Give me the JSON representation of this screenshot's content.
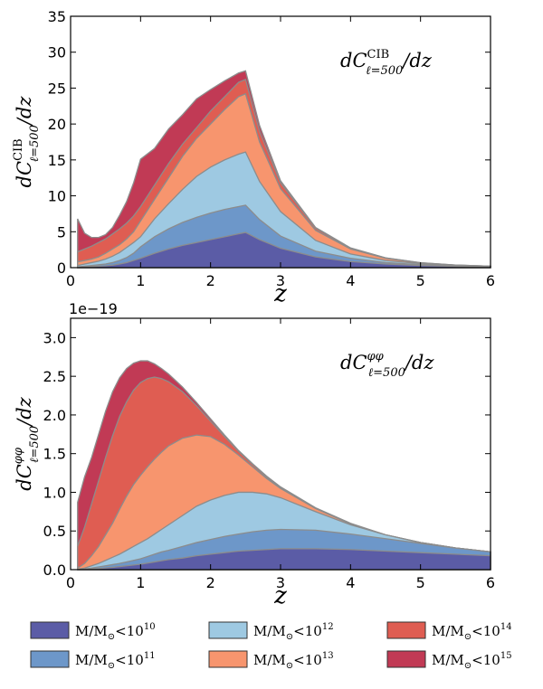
{
  "colors": {
    "m10": "#5b5ca6",
    "m11": "#6d97c9",
    "m12": "#9ec9e2",
    "m13": "#f7956e",
    "m14": "#df5d52",
    "m15": "#c13a55",
    "edge": "#8c8c8c"
  },
  "legend": [
    {
      "key": "m10",
      "prefix": "M/M",
      "sub": "⊙",
      "rel": "<10",
      "exp": "10"
    },
    {
      "key": "m12",
      "prefix": "M/M",
      "sub": "⊙",
      "rel": "<10",
      "exp": "12"
    },
    {
      "key": "m14",
      "prefix": "M/M",
      "sub": "⊙",
      "rel": "<10",
      "exp": "14"
    },
    {
      "key": "m11",
      "prefix": "M/M",
      "sub": "⊙",
      "rel": "<10",
      "exp": "11"
    },
    {
      "key": "m13",
      "prefix": "M/M",
      "sub": "⊙",
      "rel": "<10",
      "exp": "13"
    },
    {
      "key": "m15",
      "prefix": "M/M",
      "sub": "⊙",
      "rel": "<10",
      "exp": "15"
    }
  ],
  "chart_data": [
    {
      "type": "area",
      "stacked": "cumulative",
      "xlabel": "z",
      "ylabel": {
        "base": "dC",
        "sup": "CIB",
        "sub": "ℓ=500",
        "tail": "/dz"
      },
      "annotation": {
        "base": "dC",
        "sup": "CIB",
        "sub": "ℓ=500",
        "tail": "/dz"
      },
      "xlim": [
        0,
        6
      ],
      "ylim": [
        0,
        35
      ],
      "xticks": [
        "0",
        "1",
        "2",
        "3",
        "4",
        "5",
        "6"
      ],
      "yticks": [
        "0",
        "5",
        "10",
        "15",
        "20",
        "25",
        "30",
        "35"
      ],
      "offset_text": "",
      "x": [
        0.1,
        0.2,
        0.3,
        0.4,
        0.5,
        0.6,
        0.7,
        0.8,
        0.9,
        1.0,
        1.2,
        1.4,
        1.6,
        1.8,
        2.0,
        2.2,
        2.4,
        2.5,
        2.7,
        3.0,
        3.5,
        4.0,
        4.5,
        5.0,
        5.5,
        6.0
      ],
      "series": [
        {
          "name": "m10",
          "values": [
            0.05,
            0.1,
            0.15,
            0.2,
            0.25,
            0.35,
            0.5,
            0.7,
            1.0,
            1.3,
            2.0,
            2.6,
            3.1,
            3.5,
            3.9,
            4.3,
            4.7,
            4.9,
            3.9,
            2.7,
            1.5,
            0.85,
            0.5,
            0.3,
            0.18,
            0.1
          ]
        },
        {
          "name": "m11",
          "values": [
            0.1,
            0.2,
            0.3,
            0.4,
            0.5,
            0.7,
            1.0,
            1.4,
            2.0,
            2.9,
            4.3,
            5.4,
            6.3,
            7.0,
            7.6,
            8.1,
            8.5,
            8.7,
            6.7,
            4.4,
            2.3,
            1.3,
            0.7,
            0.4,
            0.25,
            0.15
          ]
        },
        {
          "name": "m12",
          "values": [
            0.3,
            0.5,
            0.7,
            0.9,
            1.2,
            1.6,
            2.1,
            2.8,
            3.5,
            4.3,
            6.8,
            8.9,
            10.9,
            12.7,
            14.0,
            15.0,
            15.8,
            16.1,
            12.0,
            7.8,
            3.8,
            1.9,
            1.0,
            0.55,
            0.3,
            0.18
          ]
        },
        {
          "name": "m13",
          "values": [
            0.8,
            1.0,
            1.2,
            1.5,
            2.0,
            2.6,
            3.2,
            4.0,
            5.0,
            6.5,
            9.5,
            12.5,
            15.5,
            18.0,
            20.0,
            22.0,
            23.8,
            24.2,
            17.5,
            11.0,
            5.2,
            2.6,
            1.3,
            0.65,
            0.35,
            0.2
          ]
        },
        {
          "name": "m14",
          "values": [
            2.2,
            2.6,
            3.0,
            3.5,
            4.0,
            4.7,
            5.4,
            6.2,
            7.2,
            8.5,
            11.5,
            14.5,
            17.2,
            19.5,
            21.8,
            23.8,
            25.8,
            26.2,
            19.0,
            11.8,
            5.5,
            2.7,
            1.35,
            0.68,
            0.36,
            0.2
          ]
        },
        {
          "name": "m15",
          "values": [
            6.8,
            4.8,
            4.2,
            4.2,
            4.6,
            5.6,
            7.3,
            9.2,
            11.8,
            15.1,
            16.6,
            19.3,
            21.3,
            23.5,
            24.8,
            26.0,
            27.1,
            27.4,
            19.8,
            12.1,
            5.6,
            2.75,
            1.37,
            0.69,
            0.36,
            0.2
          ]
        }
      ]
    },
    {
      "type": "area",
      "stacked": "cumulative",
      "xlabel": "z",
      "ylabel": {
        "base": "dC",
        "sup": "φφ",
        "sub": "ℓ=500",
        "tail": "/dz"
      },
      "annotation": {
        "base": "dC",
        "sup": "φφ",
        "sub": "ℓ=500",
        "tail": "/dz"
      },
      "xlim": [
        0,
        6
      ],
      "ylim": [
        0,
        3.25
      ],
      "xticks": [
        "0",
        "1",
        "2",
        "3",
        "4",
        "5",
        "6"
      ],
      "yticks": [
        "0.0",
        "0.5",
        "1.0",
        "1.5",
        "2.0",
        "2.5",
        "3.0"
      ],
      "offset_text": "1e−19",
      "x": [
        0.1,
        0.2,
        0.3,
        0.4,
        0.5,
        0.6,
        0.7,
        0.8,
        0.9,
        1.0,
        1.1,
        1.2,
        1.3,
        1.4,
        1.6,
        1.8,
        2.0,
        2.2,
        2.4,
        2.6,
        2.8,
        3.0,
        3.5,
        4.0,
        4.5,
        5.0,
        5.5,
        6.0
      ],
      "series": [
        {
          "name": "m10",
          "values": [
            0.0,
            0.003,
            0.008,
            0.015,
            0.022,
            0.03,
            0.04,
            0.05,
            0.06,
            0.07,
            0.085,
            0.1,
            0.115,
            0.13,
            0.15,
            0.18,
            0.2,
            0.22,
            0.24,
            0.25,
            0.26,
            0.27,
            0.27,
            0.26,
            0.24,
            0.22,
            0.2,
            0.18
          ]
        },
        {
          "name": "m11",
          "values": [
            0.0,
            0.008,
            0.02,
            0.035,
            0.05,
            0.065,
            0.08,
            0.1,
            0.12,
            0.14,
            0.17,
            0.2,
            0.23,
            0.25,
            0.3,
            0.35,
            0.39,
            0.43,
            0.46,
            0.49,
            0.51,
            0.52,
            0.51,
            0.46,
            0.4,
            0.34,
            0.28,
            0.23
          ]
        },
        {
          "name": "m12",
          "values": [
            0.005,
            0.02,
            0.05,
            0.08,
            0.12,
            0.16,
            0.2,
            0.25,
            0.3,
            0.35,
            0.4,
            0.46,
            0.52,
            0.58,
            0.7,
            0.82,
            0.9,
            0.96,
            1.0,
            1.0,
            0.98,
            0.93,
            0.75,
            0.58,
            0.45,
            0.35,
            0.28,
            0.23
          ]
        },
        {
          "name": "m13",
          "values": [
            0.02,
            0.08,
            0.18,
            0.3,
            0.45,
            0.6,
            0.78,
            0.95,
            1.1,
            1.22,
            1.33,
            1.43,
            1.52,
            1.6,
            1.7,
            1.74,
            1.72,
            1.62,
            1.48,
            1.33,
            1.18,
            1.05,
            0.79,
            0.59,
            0.45,
            0.35,
            0.28,
            0.23
          ]
        },
        {
          "name": "m14",
          "values": [
            0.3,
            0.55,
            0.85,
            1.15,
            1.45,
            1.73,
            1.98,
            2.17,
            2.32,
            2.42,
            2.47,
            2.49,
            2.47,
            2.43,
            2.3,
            2.12,
            1.92,
            1.72,
            1.53,
            1.36,
            1.2,
            1.06,
            0.79,
            0.59,
            0.45,
            0.35,
            0.28,
            0.23
          ]
        },
        {
          "name": "m15",
          "values": [
            0.87,
            1.2,
            1.45,
            1.75,
            2.05,
            2.3,
            2.48,
            2.6,
            2.67,
            2.7,
            2.7,
            2.66,
            2.6,
            2.53,
            2.36,
            2.16,
            1.95,
            1.74,
            1.54,
            1.37,
            1.21,
            1.07,
            0.8,
            0.6,
            0.45,
            0.35,
            0.28,
            0.23
          ]
        }
      ]
    }
  ]
}
